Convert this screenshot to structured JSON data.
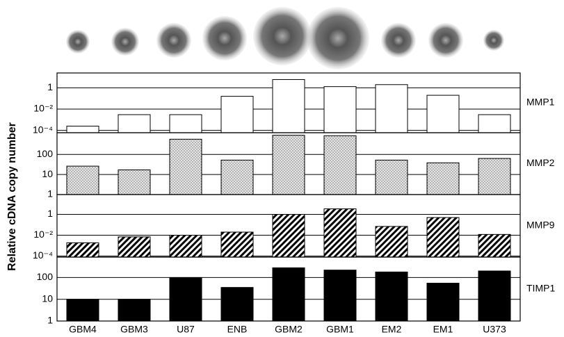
{
  "chart_data": {
    "type": "bar",
    "ylabel": "Relative cDNA copy number",
    "log_scale": true,
    "grid": true,
    "categories": [
      "GBM4",
      "GBM3",
      "U87",
      "ENB",
      "GBM2",
      "GBM1",
      "EM2",
      "EM1",
      "U373"
    ],
    "series": [
      {
        "name": "MMP1",
        "fill": "plain",
        "color": "#ffffff",
        "values": [
          0.00025,
          0.003,
          0.003,
          0.16,
          6,
          1.3,
          2,
          0.2,
          0.003
        ],
        "ylim": [
          6e-05,
          25
        ],
        "yticks": [
          1,
          {
            "value": 0.01,
            "label": "10⁻²"
          },
          {
            "value": 0.0001,
            "label": "10⁻⁴"
          }
        ]
      },
      {
        "name": "MMP2",
        "fill": "dotted",
        "color": "#d9d9d9",
        "values": [
          26,
          17,
          570,
          52,
          900,
          850,
          52,
          38,
          63
        ],
        "ylim": [
          1,
          1200
        ],
        "yticks": [
          100,
          10,
          1
        ]
      },
      {
        "name": "MMP9",
        "fill": "hatched",
        "color": "#000000",
        "values": [
          0.0019,
          0.007,
          0.01,
          0.02,
          1,
          3.4,
          0.07,
          0.5,
          0.012
        ],
        "ylim": [
          8e-05,
          80
        ],
        "yticks": [
          1,
          {
            "value": 0.01,
            "label": "10⁻²"
          },
          {
            "value": 0.0001,
            "label": "10⁻⁴"
          }
        ]
      },
      {
        "name": "TIMP1",
        "fill": "solid",
        "color": "#000000",
        "values": [
          10,
          10,
          100,
          35,
          280,
          220,
          180,
          55,
          200
        ],
        "ylim": [
          1,
          870
        ],
        "yticks": [
          100,
          10,
          1
        ]
      }
    ]
  }
}
